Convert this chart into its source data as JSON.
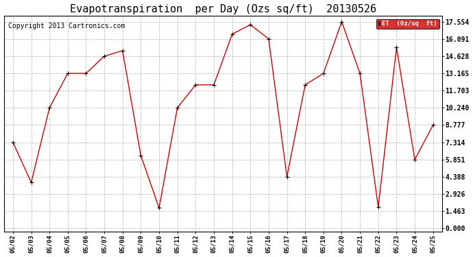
{
  "title": "Evapotranspiration  per Day (Ozs sq/ft)  20130526",
  "copyright": "Copyright 2013 Cartronics.com",
  "legend_label": "ET  (0z/sq  ft)",
  "x_labels": [
    "05/02",
    "05/03",
    "05/04",
    "05/05",
    "05/06",
    "05/07",
    "05/08",
    "05/09",
    "05/10",
    "05/11",
    "05/12",
    "05/13",
    "05/14",
    "05/15",
    "05/16",
    "05/17",
    "05/18",
    "05/19",
    "05/20",
    "05/21",
    "05/22",
    "05/23",
    "05/24",
    "05/25"
  ],
  "y_values": [
    7.314,
    3.9,
    10.24,
    13.165,
    13.165,
    14.628,
    15.091,
    6.2,
    1.732,
    10.24,
    12.192,
    12.192,
    16.5,
    17.3,
    16.091,
    4.388,
    12.192,
    13.165,
    17.554,
    13.165,
    1.8,
    15.36,
    5.851,
    8.777
  ],
  "y_ticks": [
    0.0,
    1.463,
    2.926,
    4.388,
    5.851,
    7.314,
    8.777,
    10.24,
    11.703,
    13.165,
    14.628,
    16.091,
    17.554
  ],
  "y_min": 0.0,
  "y_max": 17.554,
  "line_color": "#cc0000",
  "marker_color": "#000000",
  "background_color": "#ffffff",
  "grid_color": "#bbbbbb",
  "title_fontsize": 11,
  "copyright_fontsize": 7,
  "legend_bg": "#cc0000",
  "legend_fg": "#ffffff"
}
